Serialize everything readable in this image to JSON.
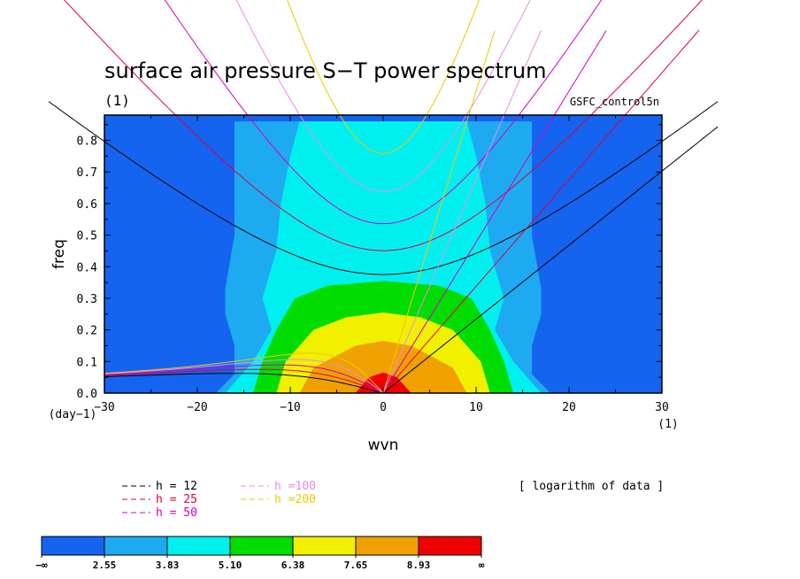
{
  "chart_data": {
    "type": "heatmap",
    "title": "surface air pressure S−T power spectrum",
    "subtitle_left": "(1)",
    "subtitle_right": "GSFC_control5n",
    "xlabel": "wvn",
    "ylabel": "freq",
    "x_unit_label": "(1)",
    "y_unit_label": "(day−1)",
    "xlim": [
      -30,
      30
    ],
    "ylim": [
      0,
      0.88
    ],
    "x_ticks": [
      -30,
      -20,
      -10,
      0,
      10,
      20,
      30
    ],
    "x_tick_labels": [
      "−30",
      "−20",
      "−10",
      "0",
      "10",
      "20",
      "30"
    ],
    "y_ticks": [
      0,
      0.1,
      0.2,
      0.3,
      0.4,
      0.5,
      0.6,
      0.7,
      0.8
    ],
    "y_tick_labels": [
      "0.0",
      "0.1",
      "0.2",
      "0.3",
      "0.4",
      "0.5",
      "0.6",
      "0.7",
      "0.8"
    ],
    "note": "[ logarithm of data ]",
    "colorbar": {
      "labels": [
        "−∞",
        "2.55",
        "3.83",
        "5.10",
        "6.38",
        "7.65",
        "8.93",
        "∞"
      ],
      "colors": [
        "#1464f0",
        "#1eaaf0",
        "#00f0f0",
        "#00dc00",
        "#f0f000",
        "#f0a000",
        "#f00000"
      ]
    },
    "dispersion_curves": [
      {
        "label": "h = 12",
        "h": 12,
        "color": "#000000"
      },
      {
        "label": "h = 25",
        "h": 25,
        "color": "#e0003c"
      },
      {
        "label": "h = 50",
        "h": 50,
        "color": "#d200c8"
      },
      {
        "label": "h =100",
        "h": 100,
        "color": "#e68ce6"
      },
      {
        "label": "h =200",
        "h": 200,
        "color": "#f0c800"
      }
    ],
    "contour_bands": [
      {
        "level": 2.55,
        "half_width_at_freq": [
          [
            0,
            18
          ],
          [
            0.06,
            16
          ],
          [
            0.15,
            16
          ],
          [
            0.25,
            17
          ],
          [
            0.33,
            17
          ],
          [
            0.5,
            16
          ],
          [
            0.65,
            16
          ],
          [
            0.75,
            16
          ],
          [
            0.86,
            16
          ]
        ]
      },
      {
        "level": 3.83,
        "half_width_at_freq": [
          [
            0,
            17
          ],
          [
            0.1,
            14
          ],
          [
            0.2,
            12
          ],
          [
            0.3,
            13
          ],
          [
            0.45,
            11.5
          ],
          [
            0.6,
            11
          ],
          [
            0.75,
            10
          ],
          [
            0.86,
            9
          ]
        ]
      },
      {
        "level": 5.1,
        "half_width_at_freq": [
          [
            0,
            14
          ],
          [
            0.1,
            13
          ],
          [
            0.2,
            11.5
          ],
          [
            0.3,
            9.5
          ],
          [
            0.34,
            6
          ]
        ]
      },
      {
        "level": 6.38,
        "half_width_at_freq": [
          [
            0,
            11.5
          ],
          [
            0.1,
            10.5
          ],
          [
            0.2,
            7.5
          ],
          [
            0.24,
            4
          ]
        ]
      },
      {
        "level": 7.65,
        "half_width_at_freq": [
          [
            0,
            9
          ],
          [
            0.08,
            7.5
          ],
          [
            0.15,
            3
          ]
        ]
      },
      {
        "level": 8.93,
        "half_width_at_freq": [
          [
            0,
            3
          ],
          [
            0.05,
            1.5
          ]
        ]
      }
    ]
  }
}
